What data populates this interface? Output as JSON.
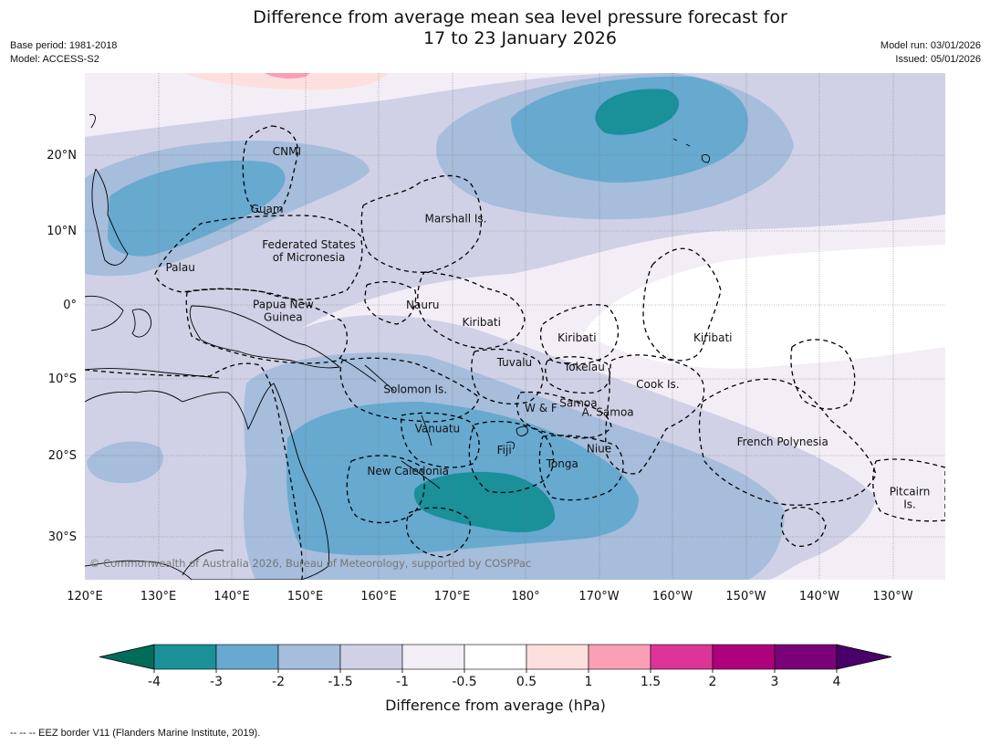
{
  "title_line1": "Difference from average mean sea level pressure forecast for",
  "title_line2": "17 to 23 January 2026",
  "base_period": "Base period: 1981-2018",
  "model": "Model: ACCESS-S2",
  "model_run": "Model run: 03/01/2026",
  "issued": "Issued: 05/01/2026",
  "copyright": "© Commonwealth of Australia 2026, Bureau of Meteorology, supported by COSPPac",
  "footnote": "--  --  -- EEZ border V11 (Flanders Marine Institute, 2019).",
  "lon_labels": [
    "120°E",
    "130°E",
    "140°E",
    "150°E",
    "160°E",
    "170°E",
    "180°",
    "170°W",
    "160°W",
    "150°W",
    "140°W",
    "130°W"
  ],
  "lat_labels": [
    "20°N",
    "10°N",
    "0°",
    "10°S",
    "20°S",
    "30°S"
  ],
  "places": [
    {
      "id": "cnmi",
      "lines": [
        "CNMI"
      ],
      "lon": 147.5,
      "lat": 20.5
    },
    {
      "id": "guam",
      "lines": [
        "Guam"
      ],
      "lon": 144.8,
      "lat": 12.8
    },
    {
      "id": "marshall",
      "lines": [
        "Marshall Is."
      ],
      "lon": 170.5,
      "lat": 11.5
    },
    {
      "id": "fsm",
      "lines": [
        "Federated States",
        "of Micronesia"
      ],
      "lon": 150.5,
      "lat": 7.2
    },
    {
      "id": "palau",
      "lines": [
        "Palau"
      ],
      "lon": 133,
      "lat": 5
    },
    {
      "id": "png",
      "lines": [
        "Papua New",
        "Guinea"
      ],
      "lon": 147,
      "lat": -0.8
    },
    {
      "id": "nauru",
      "lines": [
        "Nauru"
      ],
      "lon": 166,
      "lat": 0
    },
    {
      "id": "kiribati-w",
      "lines": [
        "Kiribati"
      ],
      "lon": 174,
      "lat": -2.3
    },
    {
      "id": "kiribati-c",
      "lines": [
        "Kiribati"
      ],
      "lon": -173,
      "lat": -4.4
    },
    {
      "id": "kiribati-e",
      "lines": [
        "Kiribati"
      ],
      "lon": -154.5,
      "lat": -4.4
    },
    {
      "id": "tuvalu",
      "lines": [
        "Tuvalu"
      ],
      "lon": 178.5,
      "lat": -7.7
    },
    {
      "id": "tokelau",
      "lines": [
        "Tokelau"
      ],
      "lon": -172,
      "lat": -8.3
    },
    {
      "id": "solomon",
      "lines": [
        "Solomon Is."
      ],
      "lon": 165,
      "lat": -11.3
    },
    {
      "id": "cook",
      "lines": [
        "Cook Is."
      ],
      "lon": -162,
      "lat": -10.6
    },
    {
      "id": "samoa",
      "lines": [
        "Samoa"
      ],
      "lon": -172.8,
      "lat": -13.1
    },
    {
      "id": "wf",
      "lines": [
        "W & F"
      ],
      "lon": -177.9,
      "lat": -13.8
    },
    {
      "id": "asamoa",
      "lines": [
        "A. Samoa"
      ],
      "lon": -168.8,
      "lat": -14.3
    },
    {
      "id": "vanuatu",
      "lines": [
        "Vanuatu"
      ],
      "lon": 168,
      "lat": -16.5
    },
    {
      "id": "fiji",
      "lines": [
        "Fiji"
      ],
      "lon": 177.1,
      "lat": -19.4
    },
    {
      "id": "niue",
      "lines": [
        "Niue"
      ],
      "lon": -170,
      "lat": -19.2
    },
    {
      "id": "frenchpoly",
      "lines": [
        "French Polynesia"
      ],
      "lon": -145,
      "lat": -18.3
    },
    {
      "id": "tonga",
      "lines": [
        "Tonga"
      ],
      "lon": -175,
      "lat": -21.2
    },
    {
      "id": "newcal",
      "lines": [
        "New Caledonia"
      ],
      "lon": 164,
      "lat": -22.2
    },
    {
      "id": "pitcairn",
      "lines": [
        "Pitcairn",
        "Is."
      ],
      "lon": -127.7,
      "lat": -25.8
    }
  ],
  "colorbar": {
    "title": "Difference from average (hPa)",
    "tick_labels": [
      "-4",
      "-3",
      "-2",
      "-1.5",
      "-1",
      "-0.5",
      "0.5",
      "1",
      "1.5",
      "2",
      "3",
      "4"
    ],
    "bin_colors": [
      "#1a9099",
      "#67a9cf",
      "#a6bddb",
      "#d0d1e6",
      "#f3eef6",
      "#ffffff",
      "#fde0dd",
      "#fa9fb5",
      "#dd3497",
      "#ae017e",
      "#7a0177"
    ],
    "extend_low_color": "#016c59",
    "extend_high_color": "#49006a"
  }
}
